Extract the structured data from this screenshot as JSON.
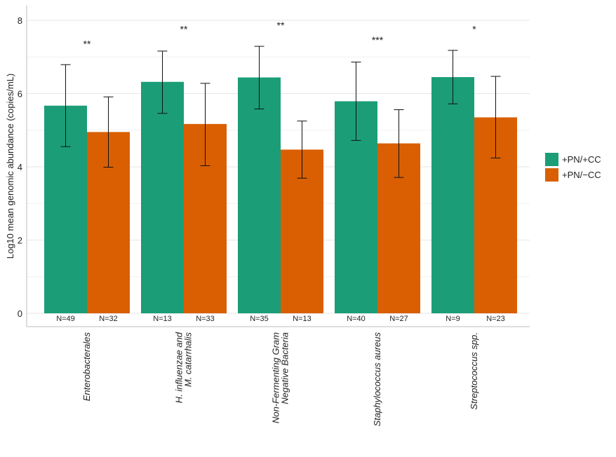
{
  "chart_data": {
    "type": "bar",
    "title": "",
    "xlabel": "",
    "ylabel": "Log10 mean genomic abundance (copies/mL)",
    "ylim": [
      0,
      8.4
    ],
    "yticks": [
      0,
      2,
      4,
      6,
      8
    ],
    "categories": [
      {
        "lines": [
          "Enterobacterales"
        ]
      },
      {
        "lines": [
          "H. influenzae and",
          "M. catarrhalis"
        ]
      },
      {
        "lines": [
          "Non-Fermenting Gram",
          "Negative Bacteria"
        ]
      },
      {
        "lines": [
          "Staphylococcus aureus"
        ]
      },
      {
        "lines": [
          "Streptococcus spp."
        ]
      }
    ],
    "series": [
      {
        "name": "+PN/+CC",
        "color": "#1b9e77",
        "values": [
          5.67,
          6.32,
          6.44,
          5.79,
          6.45
        ],
        "err_low": [
          4.55,
          5.46,
          5.58,
          4.72,
          5.72
        ],
        "err_high": [
          6.79,
          7.16,
          7.29,
          6.86,
          7.18
        ],
        "n_labels": [
          "N=49",
          "N=13",
          "N=35",
          "N=40",
          "N=9"
        ]
      },
      {
        "name": "+PN/−CC",
        "color": "#d95f02",
        "values": [
          4.95,
          5.17,
          4.47,
          4.64,
          5.35
        ],
        "err_low": [
          3.99,
          4.03,
          3.69,
          3.71,
          4.24
        ],
        "err_high": [
          5.91,
          6.28,
          5.25,
          5.56,
          6.47
        ],
        "n_labels": [
          "N=32",
          "N=33",
          "N=13",
          "N=27",
          "N=23"
        ]
      }
    ],
    "significance": [
      {
        "label": "**",
        "y": 7.4
      },
      {
        "label": "**",
        "y": 7.8
      },
      {
        "label": "**",
        "y": 7.9
      },
      {
        "label": "***",
        "y": 7.5
      },
      {
        "label": "*",
        "y": 7.8
      }
    ],
    "grid": true,
    "legend_position": "right"
  }
}
